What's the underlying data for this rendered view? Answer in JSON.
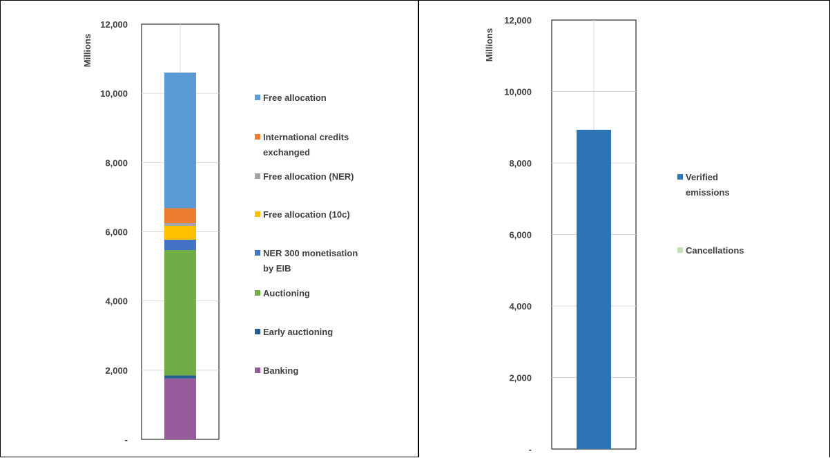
{
  "chart_data": [
    {
      "type": "bar",
      "stacked": true,
      "categories": [
        ""
      ],
      "ylabel": "Millions",
      "ylim": [
        0,
        12000
      ],
      "yticks": [
        {
          "value": 0,
          "label": "-"
        },
        {
          "value": 2000,
          "label": "2,000"
        },
        {
          "value": 4000,
          "label": "4,000"
        },
        {
          "value": 6000,
          "label": "6,000"
        },
        {
          "value": 8000,
          "label": "8,000"
        },
        {
          "value": 10000,
          "label": "10,000"
        },
        {
          "value": 12000,
          "label": "12,000"
        }
      ],
      "grid": true,
      "legend_placement": "right",
      "series": [
        {
          "name": "Banking",
          "values": [
            1760
          ],
          "color": "#955b9b",
          "legend_lines": [
            "Banking"
          ]
        },
        {
          "name": "Early auctioning",
          "values": [
            90
          ],
          "color": "#255e91",
          "legend_lines": [
            "Early auctioning"
          ]
        },
        {
          "name": "Auctioning",
          "values": [
            3620
          ],
          "color": "#70ad47",
          "legend_lines": [
            "Auctioning"
          ]
        },
        {
          "name": "NER 300 monetisation by EIB",
          "values": [
            300
          ],
          "color": "#4472c4",
          "legend_lines": [
            "NER 300 monetisation",
            "by EIB"
          ]
        },
        {
          "name": "Free allocation (10c)",
          "values": [
            400
          ],
          "color": "#ffc000",
          "legend_lines": [
            "Free allocation (10c)"
          ]
        },
        {
          "name": "Free allocation (NER)",
          "values": [
            80
          ],
          "color": "#a5a5a5",
          "legend_lines": [
            "Free allocation (NER)"
          ]
        },
        {
          "name": "International credits exchanged",
          "values": [
            430
          ],
          "color": "#ed7d31",
          "legend_lines": [
            "International credits",
            "exchanged"
          ]
        },
        {
          "name": "Free allocation",
          "values": [
            3920
          ],
          "color": "#5b9bd5",
          "legend_lines": [
            "Free allocation"
          ]
        }
      ]
    },
    {
      "type": "bar",
      "stacked": true,
      "categories": [
        ""
      ],
      "ylabel": "Millions",
      "ylim": [
        0,
        12000
      ],
      "yticks": [
        {
          "value": 0,
          "label": "-"
        },
        {
          "value": 2000,
          "label": "2,000"
        },
        {
          "value": 4000,
          "label": "4,000"
        },
        {
          "value": 6000,
          "label": "6,000"
        },
        {
          "value": 8000,
          "label": "8,000"
        },
        {
          "value": 10000,
          "label": "10,000"
        },
        {
          "value": 12000,
          "label": "12,000"
        }
      ],
      "grid": true,
      "legend_placement": "right",
      "series": [
        {
          "name": "Cancellations",
          "values": [
            0
          ],
          "color": "#c5e0b4",
          "legend_lines": [
            "Cancellations"
          ]
        },
        {
          "name": "Verified emissions",
          "values": [
            8930
          ],
          "color": "#2e75b6",
          "legend_lines": [
            "Verified",
            "emissions"
          ]
        }
      ],
      "legend_order": [
        "Verified emissions",
        "Cancellations"
      ]
    }
  ]
}
